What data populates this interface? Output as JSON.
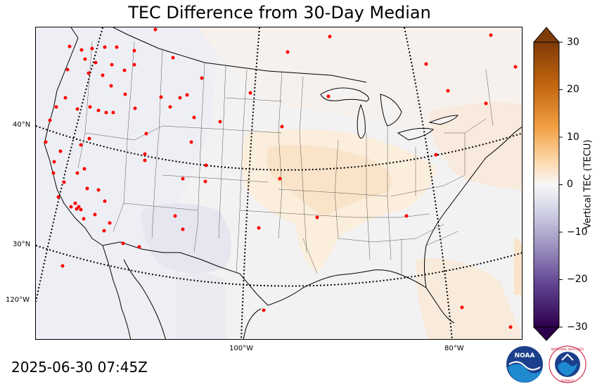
{
  "title": "TEC Difference from 30-Day Median",
  "timestamp": "2025-06-30 07:45Z",
  "lat_labels": [
    "40°N",
    "30°N"
  ],
  "lon_labels": [
    "120°W",
    "100°W",
    "80°W"
  ],
  "colorbar": {
    "label": "Vertical TEC (TECU)",
    "ticks": [
      "30",
      "20",
      "10",
      "0",
      "−10",
      "−20",
      "−30"
    ],
    "range": [
      -30,
      30
    ]
  },
  "logos": {
    "noaa_text": "NOAA",
    "nws_text": "NATIONAL WEATHER SERVICE"
  },
  "colors": {
    "positive": "#b35806",
    "neutral": "#f7f7f7",
    "negative": "#2d004b",
    "station": "#ff0000"
  }
}
